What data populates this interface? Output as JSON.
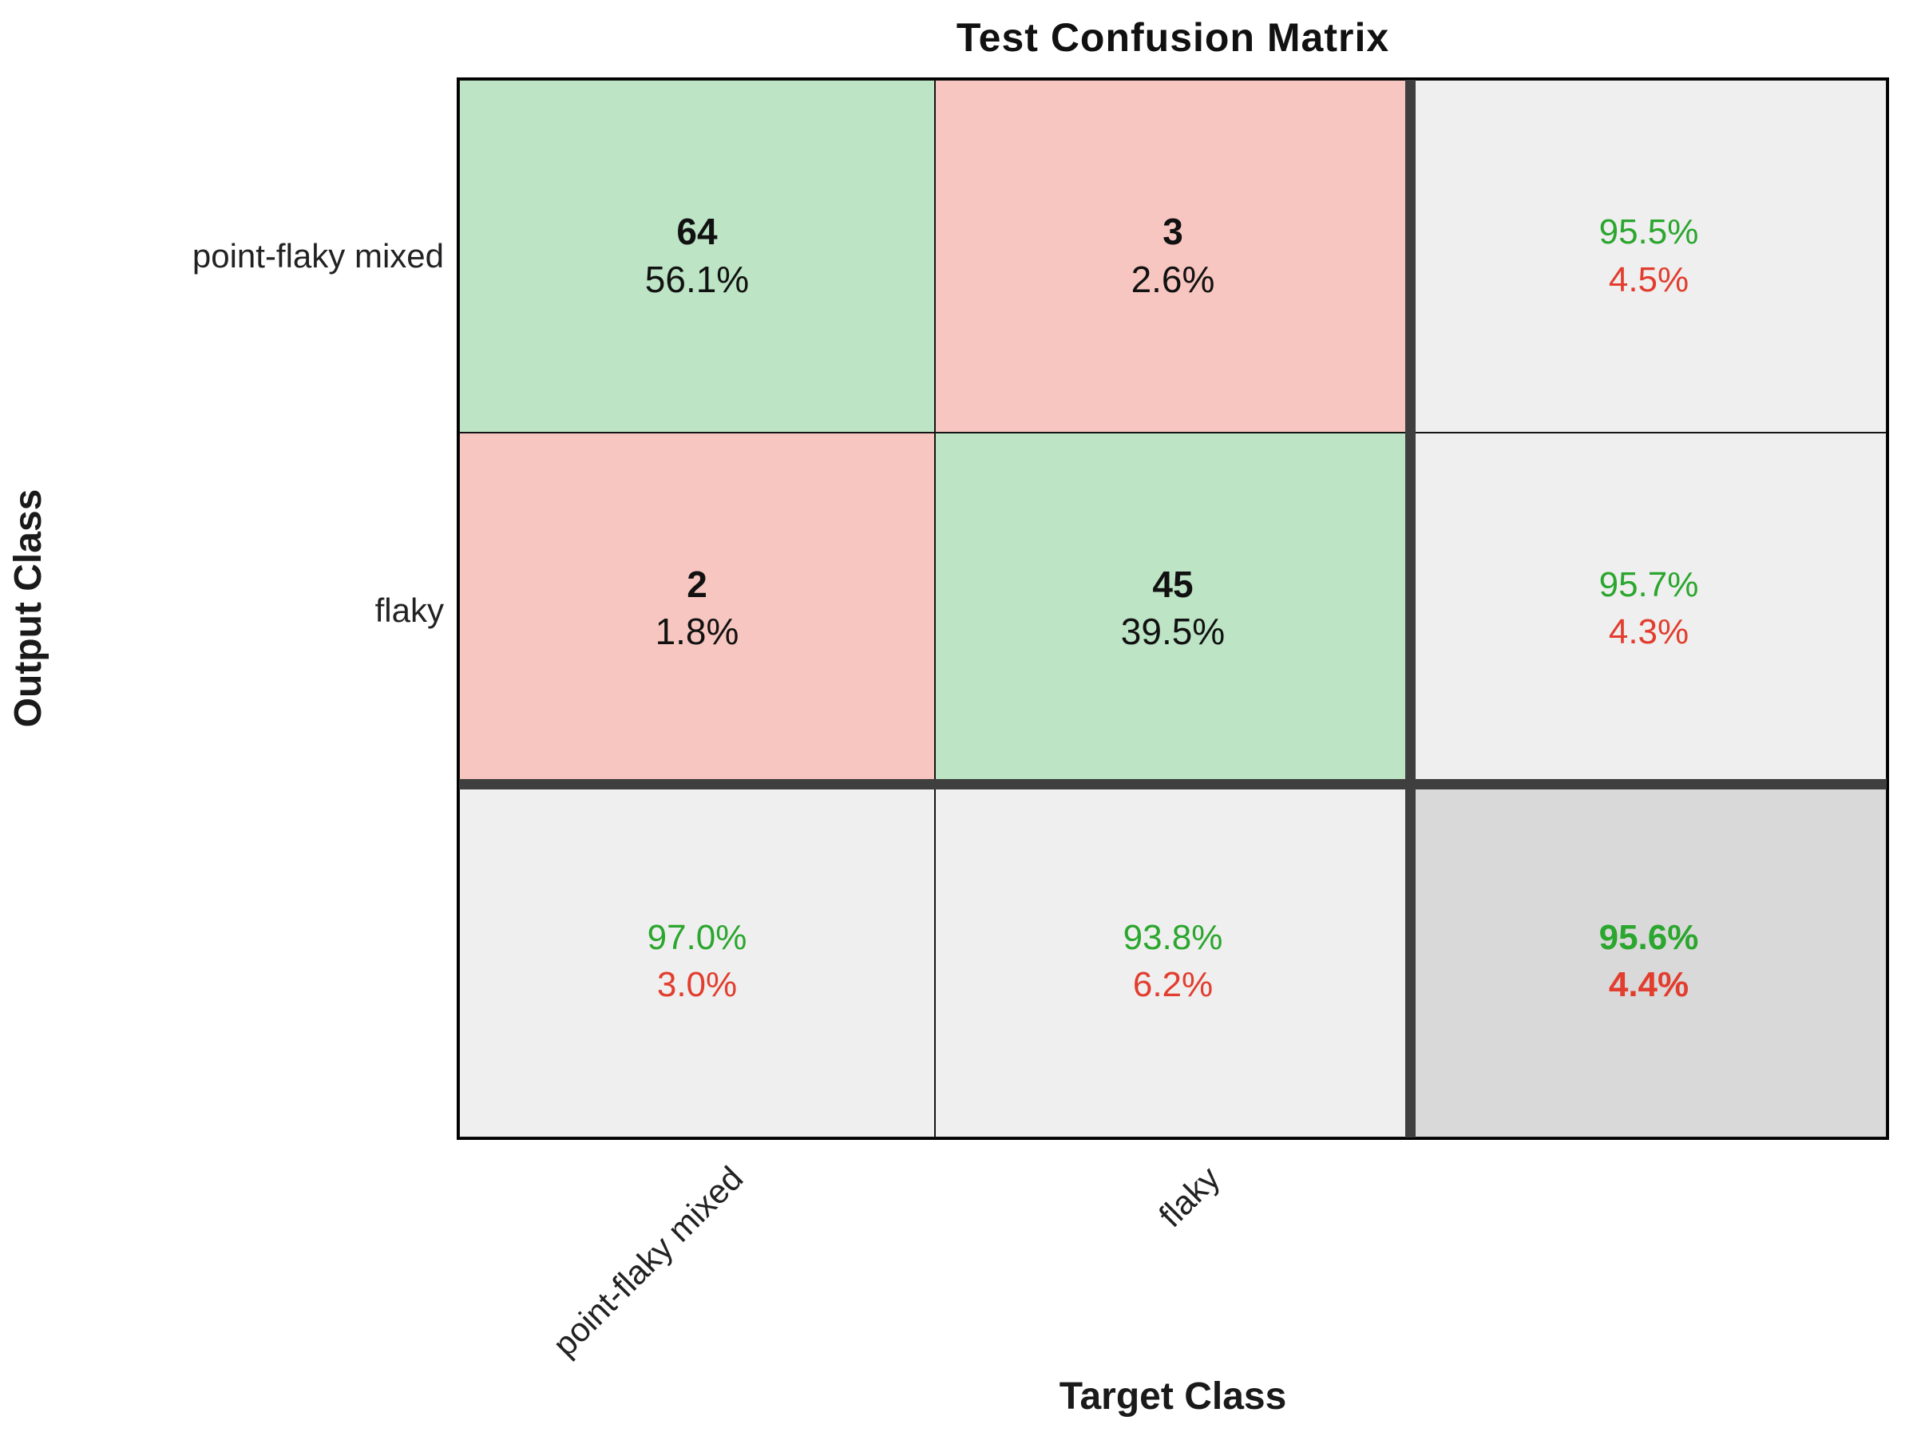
{
  "chart_data": {
    "type": "heatmap",
    "variant": "confusion-matrix",
    "title": "Test Confusion Matrix",
    "xlabel": "Target Class",
    "ylabel": "Output Class",
    "classes": [
      "point-flaky mixed",
      "flaky"
    ],
    "counts_numeric": [
      [
        64,
        3
      ],
      [
        2,
        45
      ]
    ],
    "rows": [
      [
        {
          "kind": "correct",
          "count": "64",
          "pct": "56.1%"
        },
        {
          "kind": "incorrect",
          "count": "3",
          "pct": "2.6%"
        },
        {
          "kind": "summary",
          "pct_good": "95.5%",
          "pct_bad": "4.5%"
        }
      ],
      [
        {
          "kind": "incorrect",
          "count": "2",
          "pct": "1.8%"
        },
        {
          "kind": "correct",
          "count": "45",
          "pct": "39.5%"
        },
        {
          "kind": "summary",
          "pct_good": "95.7%",
          "pct_bad": "4.3%"
        }
      ],
      [
        {
          "kind": "summary",
          "pct_good": "97.0%",
          "pct_bad": "3.0%"
        },
        {
          "kind": "summary",
          "pct_good": "93.8%",
          "pct_bad": "6.2%"
        },
        {
          "kind": "total",
          "pct_good": "95.6%",
          "pct_bad": "4.4%"
        }
      ]
    ],
    "colors": {
      "correct_fill": "#bde4c5",
      "incorrect_fill": "#f8c6c0",
      "summary_fill": "#efefef",
      "total_fill": "#d9d9d9",
      "good_text": "#2ba62e",
      "bad_text": "#e23d2e",
      "separator": "#3f3f3f"
    },
    "layout": {
      "grid": "3x3",
      "legend": "none",
      "x_tick_rotation_deg": 45
    }
  }
}
